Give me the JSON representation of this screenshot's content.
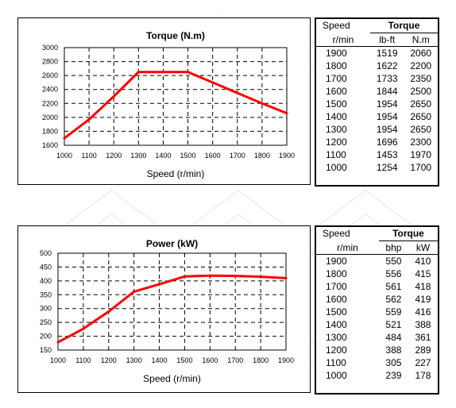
{
  "chart_data": [
    {
      "type": "line",
      "title": "Torque (N.m)",
      "xlabel": "Speed (r/min)",
      "ylabel": "",
      "x": [
        1000,
        1100,
        1200,
        1300,
        1400,
        1500,
        1600,
        1700,
        1800,
        1900
      ],
      "xlim": [
        1000,
        1900
      ],
      "ylim": [
        1600,
        3000
      ],
      "yticks": [
        1600,
        1800,
        2000,
        2200,
        2400,
        2600,
        2800,
        3000
      ],
      "series": [
        {
          "values": [
            1700,
            1970,
            2300,
            2650,
            2650,
            2650,
            2500,
            2350,
            2200,
            2060
          ],
          "color": "#ff0000"
        }
      ],
      "grid": "dashed"
    },
    {
      "type": "line",
      "title": "Power (kW)",
      "xlabel": "Speed (r/min)",
      "ylabel": "",
      "x": [
        1000,
        1100,
        1200,
        1300,
        1400,
        1500,
        1600,
        1700,
        1800,
        1900
      ],
      "xlim": [
        1000,
        1900
      ],
      "ylim": [
        150,
        500
      ],
      "yticks": [
        150,
        200,
        250,
        300,
        350,
        400,
        450,
        500
      ],
      "series": [
        {
          "values": [
            178,
            227,
            289,
            361,
            388,
            416,
            419,
            418,
            415,
            410
          ],
          "color": "#ff0000"
        }
      ],
      "grid": "dashed"
    }
  ],
  "torque_table": {
    "speed_header": "Speed",
    "group_header": "Torque",
    "units": [
      "r/min",
      "lb-ft",
      "N.m"
    ],
    "rows": [
      [
        "1900",
        "1519",
        "2060"
      ],
      [
        "1800",
        "1622",
        "2200"
      ],
      [
        "1700",
        "1733",
        "2350"
      ],
      [
        "1600",
        "1844",
        "2500"
      ],
      [
        "1500",
        "1954",
        "2650"
      ],
      [
        "1400",
        "1954",
        "2650"
      ],
      [
        "1300",
        "1954",
        "2650"
      ],
      [
        "1200",
        "1696",
        "2300"
      ],
      [
        "1100",
        "1453",
        "1970"
      ],
      [
        "1000",
        "1254",
        "1700"
      ]
    ]
  },
  "power_table": {
    "speed_header": "Speed",
    "group_header": "Torque",
    "units": [
      "r/min",
      "bhp",
      "kW"
    ],
    "rows": [
      [
        "1900",
        "550",
        "410"
      ],
      [
        "1800",
        "556",
        "415"
      ],
      [
        "1700",
        "561",
        "418"
      ],
      [
        "1600",
        "562",
        "419"
      ],
      [
        "1500",
        "559",
        "416"
      ],
      [
        "1400",
        "521",
        "388"
      ],
      [
        "1300",
        "484",
        "361"
      ],
      [
        "1200",
        "388",
        "289"
      ],
      [
        "1100",
        "305",
        "227"
      ],
      [
        "1000",
        "239",
        "178"
      ]
    ]
  },
  "colors": {
    "line": "#ff0000",
    "grid": "#000000",
    "watermark": "#d0d0d0"
  }
}
